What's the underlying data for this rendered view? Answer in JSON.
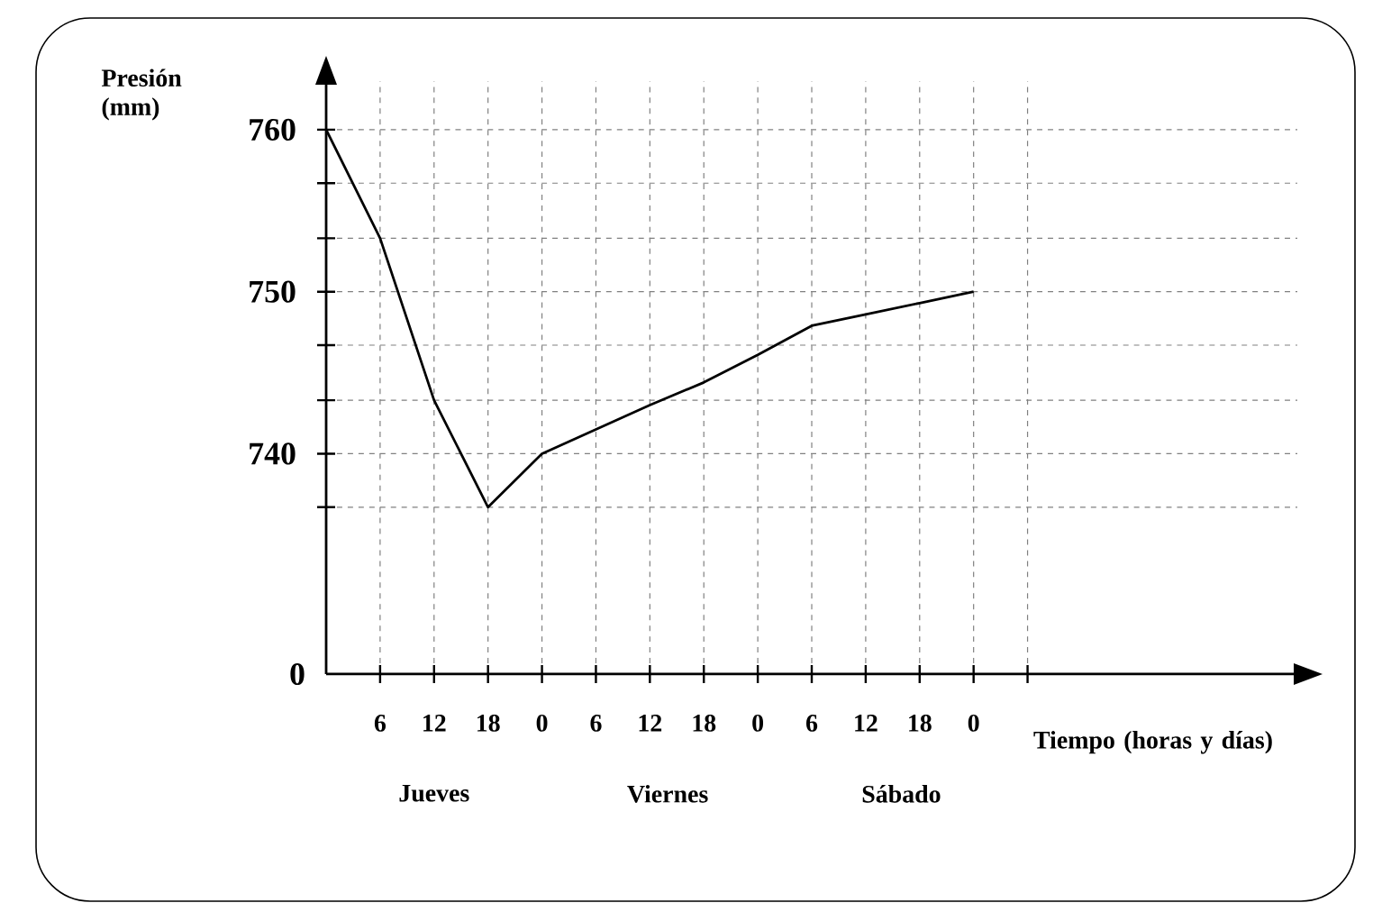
{
  "chart_data": {
    "type": "line",
    "xlabel": "Tiempo (horas y días)",
    "ylabel": "Presión (mm)",
    "categories": [
      null,
      "6",
      "12",
      "18",
      "0",
      "6",
      "12",
      "18",
      "0",
      "6",
      "12",
      "18",
      "0",
      null
    ],
    "series": [
      {
        "color": "#000000",
        "values": [
          760,
          753.3,
          743.3,
          736.7,
          740,
          741.5,
          743,
          744.4,
          746.1,
          747.9,
          748.6,
          749.3,
          750,
          null
        ]
      }
    ],
    "ylim": [
      726.4,
      763
    ],
    "yticks": [
      {
        "value": 736.7,
        "label": null
      },
      740,
      {
        "value": 743.3,
        "label": null
      },
      {
        "value": 746.7,
        "label": null
      },
      750,
      {
        "value": 753.3,
        "label": null
      },
      {
        "value": 756.7,
        "label": null
      },
      760
    ],
    "grid": true,
    "marker": "none",
    "line_style": "solid",
    "annotations": [
      "Jueves",
      "Viernes",
      "Sábado",
      "0"
    ]
  }
}
